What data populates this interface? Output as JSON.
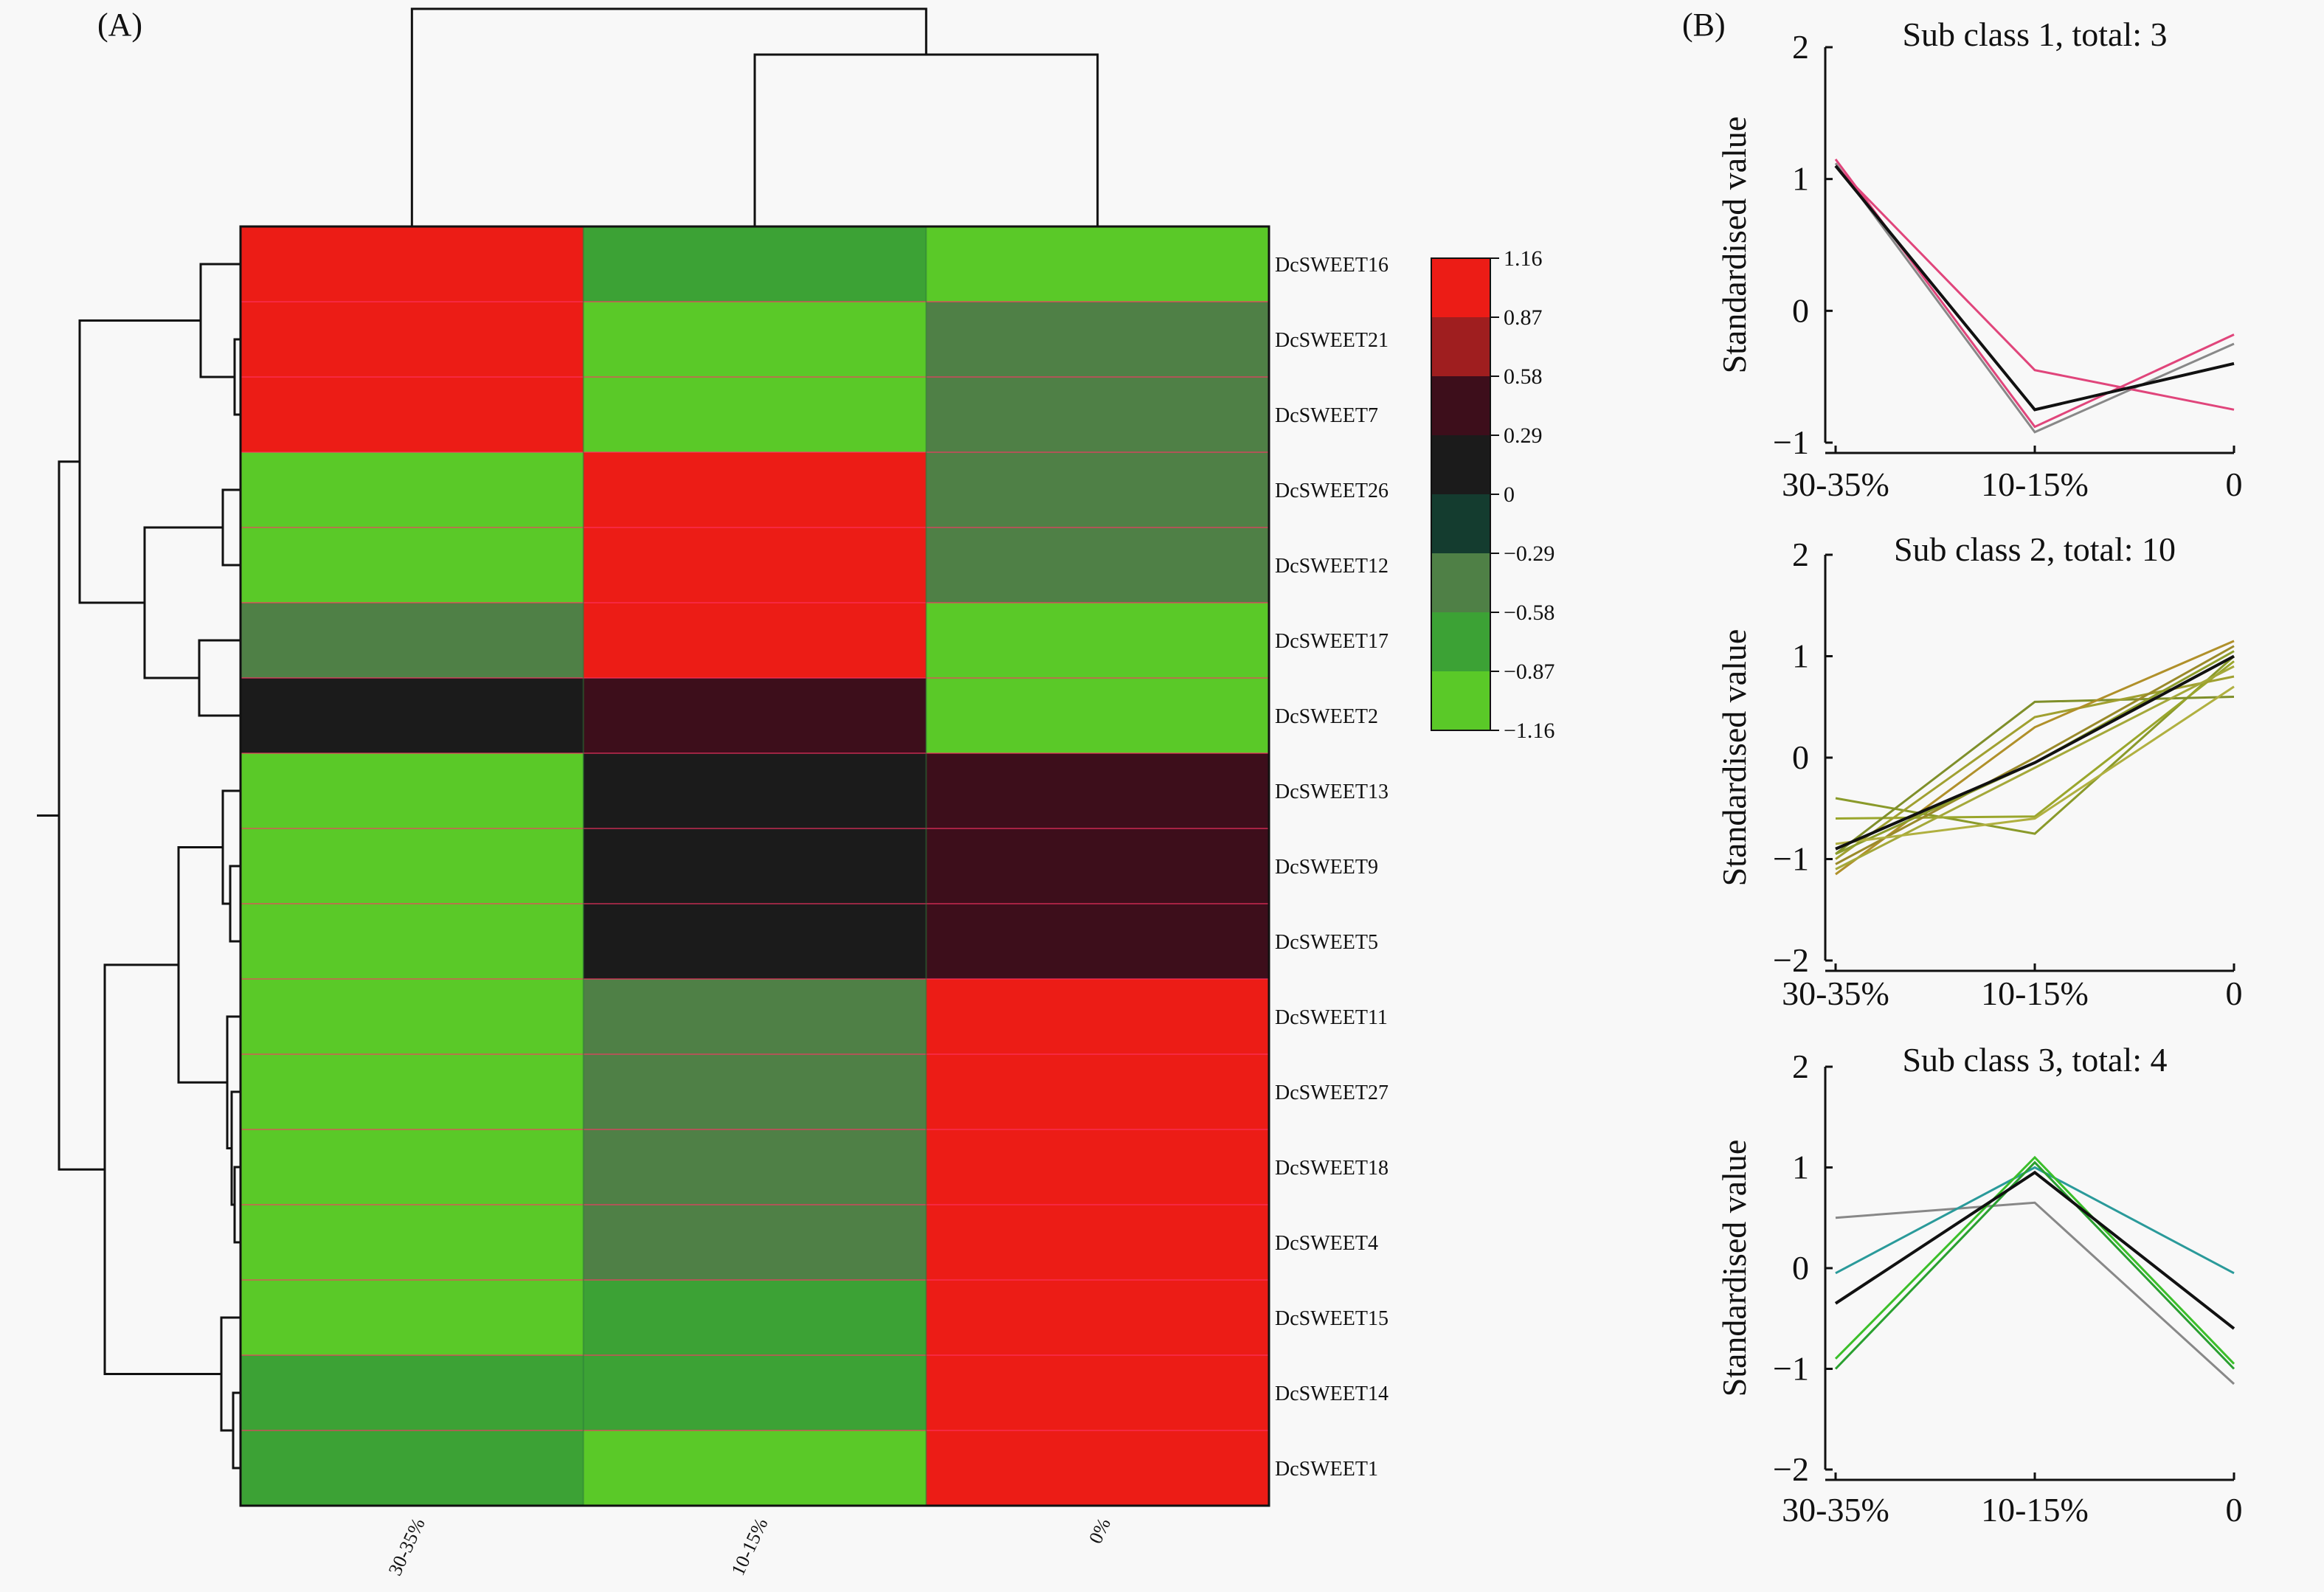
{
  "panels": {
    "a_label": "(A)",
    "b_label": "(B)"
  },
  "chart_data": [
    {
      "type": "heatmap",
      "columns": [
        "30-35%",
        "10-15%",
        "0%"
      ],
      "rows": [
        "DcSWEET16",
        "DcSWEET21",
        "DcSWEET7",
        "DcSWEET26",
        "DcSWEET12",
        "DcSWEET17",
        "DcSWEET2",
        "DcSWEET13",
        "DcSWEET9",
        "DcSWEET5",
        "DcSWEET11",
        "DcSWEET27",
        "DcSWEET18",
        "DcSWEET4",
        "DcSWEET15",
        "DcSWEET14",
        "DcSWEET1"
      ],
      "values": [
        [
          1.16,
          -0.58,
          -1.16
        ],
        [
          1.16,
          -0.87,
          -0.29
        ],
        [
          1.16,
          -1.16,
          -0.29
        ],
        [
          -1.16,
          1.16,
          -0.29
        ],
        [
          -1.16,
          1.16,
          -0.29
        ],
        [
          -0.29,
          1.16,
          -1.16
        ],
        [
          0.29,
          0.58,
          -1.16
        ],
        [
          -1.16,
          0.29,
          0.58
        ],
        [
          -1.16,
          0.29,
          0.58
        ],
        [
          -1.16,
          0.29,
          0.58
        ],
        [
          -1.16,
          -0.29,
          1.16
        ],
        [
          -1.16,
          -0.29,
          1.16
        ],
        [
          -1.16,
          -0.29,
          1.16
        ],
        [
          -1.16,
          -0.29,
          1.16
        ],
        [
          -0.87,
          -0.58,
          1.16
        ],
        [
          -0.58,
          -0.58,
          1.16
        ],
        [
          -0.58,
          -0.87,
          1.16
        ]
      ],
      "legend": {
        "ticks": [
          "1.16",
          "0.87",
          "0.58",
          "0.29",
          "0",
          "−0.29",
          "−0.58",
          "−0.87",
          "−1.16"
        ],
        "colors": [
          "#ec1c16",
          "#9f1e1f",
          "#3d0e1b",
          "#1b1b1b",
          "#143c2f",
          "#4f8046",
          "#3ca235",
          "#5ac928"
        ]
      },
      "dendrograms": {
        "row": true,
        "column": true
      }
    },
    {
      "type": "line",
      "title": "Sub class 1, total: 3",
      "categories": [
        "30-35%",
        "10-15%",
        "0"
      ],
      "ylabel": "Standardised value",
      "ylim": [
        -1,
        2
      ],
      "yticks": [
        "2",
        "1",
        "0",
        "−1"
      ],
      "series": [
        {
          "color": "#e0457b",
          "values": [
            1.15,
            -0.88,
            -0.18
          ]
        },
        {
          "color": "#888888",
          "values": [
            1.12,
            -0.92,
            -0.25
          ]
        },
        {
          "color": "#e0457b",
          "values": [
            1.1,
            -0.45,
            -0.75
          ]
        },
        {
          "color": "#111111",
          "values": [
            1.1,
            -0.75,
            -0.4
          ]
        }
      ]
    },
    {
      "type": "line",
      "title": "Sub class 2, total: 10",
      "categories": [
        "30-35%",
        "10-15%",
        "0"
      ],
      "ylabel": "Standardised value",
      "ylim": [
        -2,
        2
      ],
      "yticks": [
        "2",
        "1",
        "0",
        "−1",
        "−2"
      ],
      "series": [
        {
          "color": "#8a9a2a",
          "values": [
            -0.4,
            -0.75,
            1.0
          ]
        },
        {
          "color": "#9aa62c",
          "values": [
            -0.6,
            -0.58,
            0.95
          ]
        },
        {
          "color": "#7f8f2a",
          "values": [
            -0.95,
            0.55,
            0.6
          ]
        },
        {
          "color": "#a0a030",
          "values": [
            -1.0,
            0.4,
            0.8
          ]
        },
        {
          "color": "#b0902a",
          "values": [
            -1.15,
            0.3,
            1.15
          ]
        },
        {
          "color": "#9a8a2a",
          "values": [
            -1.05,
            0.0,
            1.1
          ]
        },
        {
          "color": "#8c9c2c",
          "values": [
            -0.95,
            -0.05,
            1.05
          ]
        },
        {
          "color": "#a4a83a",
          "values": [
            -1.1,
            -0.1,
            0.9
          ]
        },
        {
          "color": "#b0b040",
          "values": [
            -0.85,
            -0.6,
            0.7
          ]
        },
        {
          "color": "#111111",
          "values": [
            -0.9,
            -0.05,
            1.0
          ]
        }
      ]
    },
    {
      "type": "line",
      "title": "Sub class 3, total: 4",
      "categories": [
        "30-35%",
        "10-15%",
        "0"
      ],
      "ylabel": "Standardised value",
      "ylim": [
        -2,
        2
      ],
      "yticks": [
        "2",
        "1",
        "0",
        "−1",
        "−2"
      ],
      "series": [
        {
          "color": "#888888",
          "values": [
            0.5,
            0.65,
            -1.15
          ]
        },
        {
          "color": "#2a9a9a",
          "values": [
            -0.05,
            1.0,
            -0.05
          ]
        },
        {
          "color": "#3bbf2a",
          "values": [
            -0.9,
            1.1,
            -0.95
          ]
        },
        {
          "color": "#2aa030",
          "values": [
            -1.0,
            1.05,
            -1.0
          ]
        },
        {
          "color": "#111111",
          "values": [
            -0.35,
            0.95,
            -0.6
          ]
        }
      ]
    }
  ]
}
